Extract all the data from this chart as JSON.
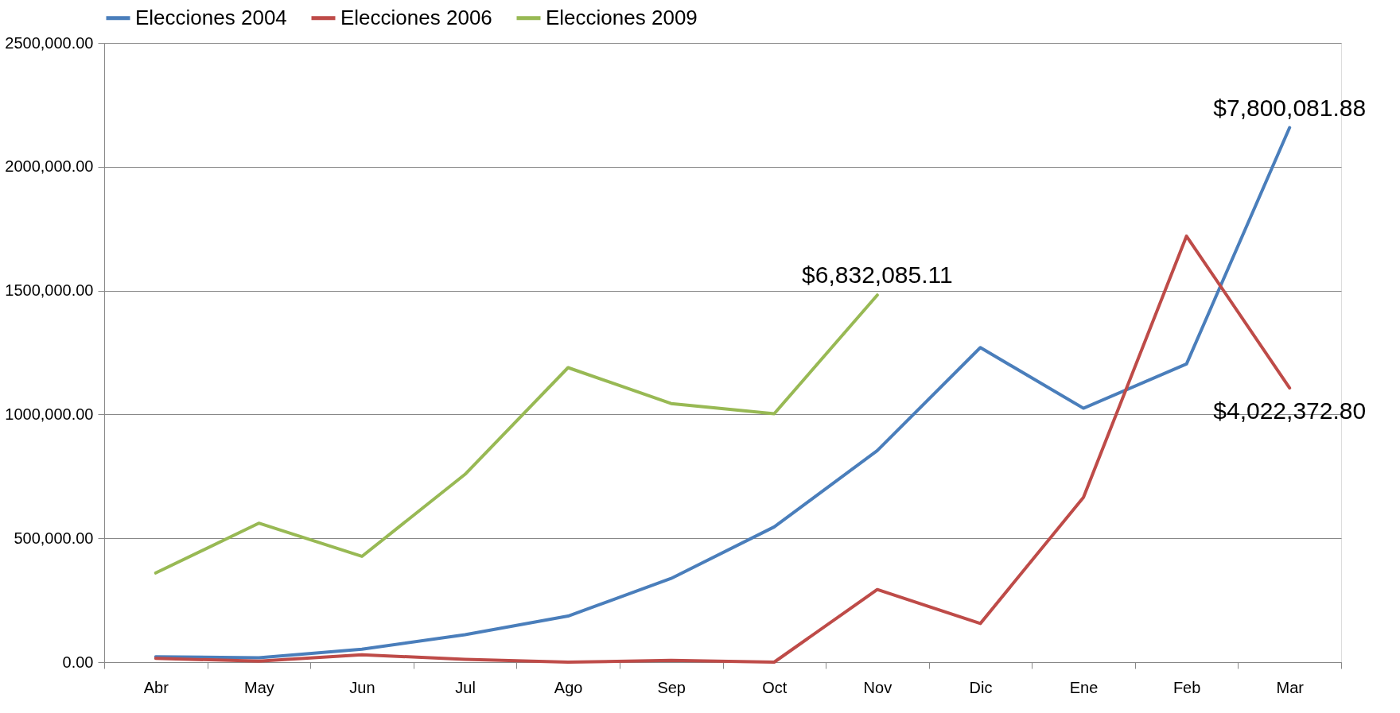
{
  "chart_data": {
    "type": "line",
    "categories": [
      "Abr",
      "May",
      "Jun",
      "Jul",
      "Ago",
      "Sep",
      "Oct",
      "Nov",
      "Dic",
      "Ene",
      "Feb",
      "Mar"
    ],
    "series": [
      {
        "name": "Elecciones 2004",
        "color": "#4a7ebb",
        "values": [
          22000,
          18000,
          52000,
          111000,
          186000,
          338000,
          546000,
          854000,
          1270000,
          1025000,
          1204000,
          2158000
        ]
      },
      {
        "name": "Elecciones 2006",
        "color": "#be4b48",
        "values": [
          15000,
          4000,
          30000,
          11000,
          0,
          7000,
          0,
          293000,
          156000,
          665000,
          1720000,
          1107000
        ]
      },
      {
        "name": "Elecciones 2009",
        "color": "#98b954",
        "values": [
          360000,
          561000,
          427000,
          758000,
          1189000,
          1044000,
          1003000,
          1482000,
          null,
          null,
          null,
          null
        ]
      }
    ],
    "ylim": [
      0,
      2500000
    ],
    "yticks": [
      {
        "value": 0,
        "label": "0.00"
      },
      {
        "value": 500000,
        "label": "500,000.00"
      },
      {
        "value": 1000000,
        "label": "1000,000.00"
      },
      {
        "value": 1500000,
        "label": "1500,000.00"
      },
      {
        "value": 2000000,
        "label": "2000,000.00"
      },
      {
        "value": 2500000,
        "label": "2500,000.00"
      }
    ],
    "grid": "y",
    "legend": "top",
    "annotations": [
      {
        "text": "$6,832,085.11",
        "x": "Nov",
        "y": 1482000
      },
      {
        "text": "$7,800,081.88",
        "x": "Mar",
        "y": 2158000
      },
      {
        "text": "$4,022,372.80",
        "x": "Mar",
        "y": 1107000
      }
    ]
  }
}
